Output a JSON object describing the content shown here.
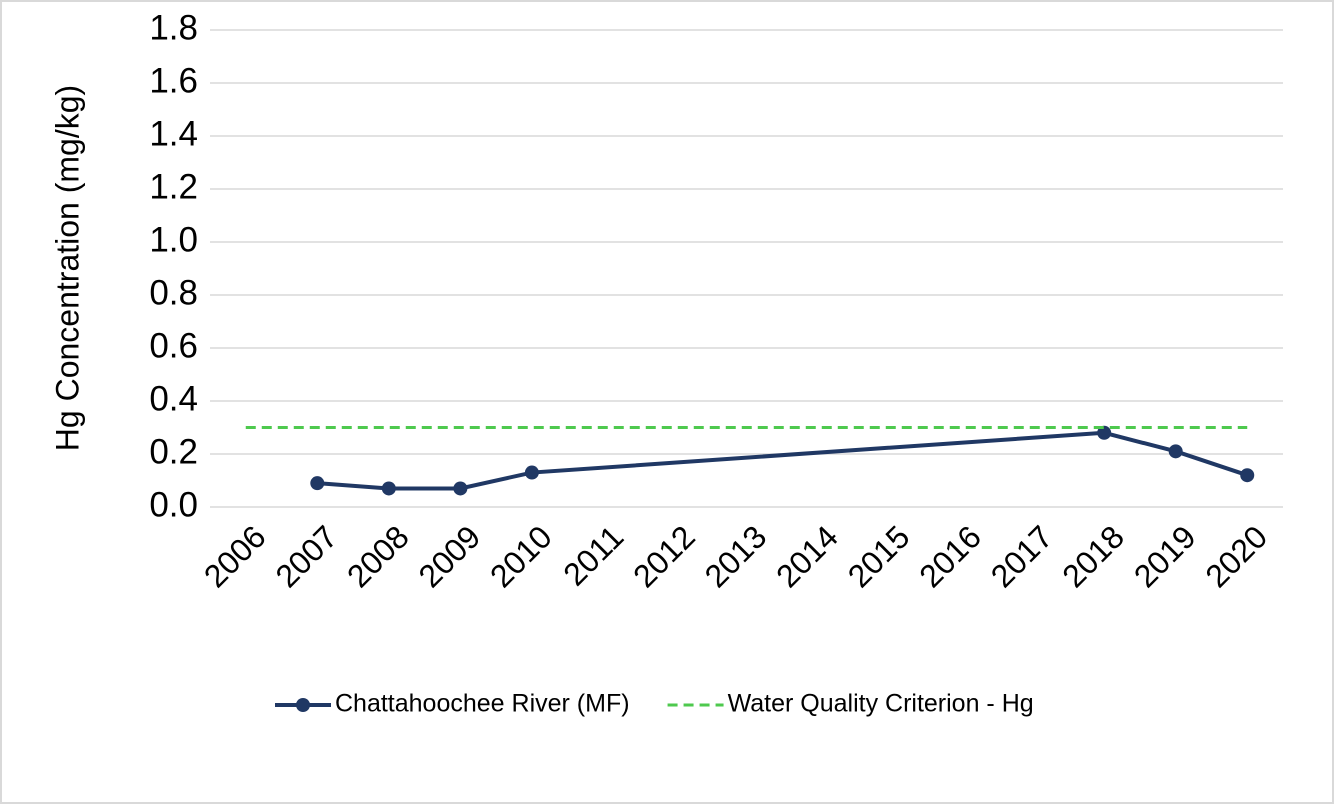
{
  "chart_data": {
    "type": "line",
    "y_label": "Hg Concentration (mg/kg)",
    "xlim": [
      2005.5,
      2020.5
    ],
    "xticks": [
      2006,
      2007,
      2008,
      2009,
      2010,
      2011,
      2012,
      2013,
      2014,
      2015,
      2016,
      2017,
      2018,
      2019,
      2020
    ],
    "ylim": [
      0,
      1.8
    ],
    "yticks": [
      {
        "value": 0,
        "label": "0.0"
      },
      {
        "value": 0.2,
        "label": "0.2"
      },
      {
        "value": 0.4,
        "label": "0.4"
      },
      {
        "value": 0.6,
        "label": "0.6"
      },
      {
        "value": 0.8,
        "label": "0.8"
      },
      {
        "value": 1,
        "label": "1.0"
      },
      {
        "value": 1.2,
        "label": "1.2"
      },
      {
        "value": 1.4,
        "label": "1.4"
      },
      {
        "value": 1.6,
        "label": "1.6"
      },
      {
        "value": 1.8,
        "label": "1.8"
      }
    ],
    "grid": true,
    "legend": "bottom",
    "series": [
      {
        "name": "Chattahoochee River (MF)",
        "color": "#203864",
        "dashed": false,
        "markers": true,
        "x": [
          2007,
          2008,
          2009,
          2010,
          2018,
          2019,
          2020
        ],
        "values": [
          0.09,
          0.07,
          0.07,
          0.13,
          0.28,
          0.21,
          0.12
        ]
      },
      {
        "name": "Water Quality Criterion - Hg",
        "color": "#4ec94e",
        "dashed": true,
        "markers": false,
        "x": [
          2006,
          2007,
          2008,
          2009,
          2010,
          2011,
          2012,
          2013,
          2014,
          2015,
          2016,
          2017,
          2018,
          2019,
          2020
        ],
        "values": [
          0.3,
          0.3,
          0.3,
          0.3,
          0.3,
          0.3,
          0.3,
          0.3,
          0.3,
          0.3,
          0.3,
          0.3,
          0.3,
          0.3,
          0.3
        ]
      }
    ]
  }
}
